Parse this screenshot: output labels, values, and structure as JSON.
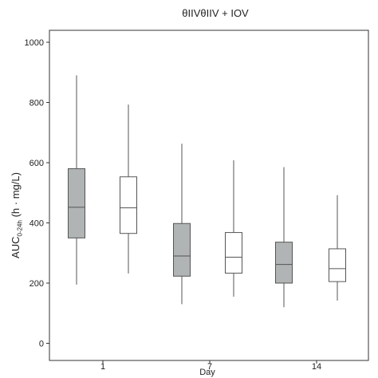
{
  "chart_data": {
    "type": "box",
    "title": "θIIVθIIV + IOV",
    "xlabel": "Day",
    "ylabel_main": "AUC",
    "ylabel_sub": "0-24h",
    "ylabel_unit": "(h · mg/L)",
    "ylim": [
      -50,
      1050
    ],
    "yticks": [
      0,
      200,
      400,
      600,
      800,
      1000
    ],
    "xtick_labels": [
      "1",
      "7",
      "14"
    ],
    "grid": false,
    "legend": "none",
    "colors": {
      "filled": "#b0b4b4",
      "open": "#ffffff",
      "stroke": "#555555",
      "frame": "#333333"
    },
    "series": [
      {
        "name": "θIIV",
        "style": "filled"
      },
      {
        "name": "θIIV + IOV",
        "style": "open"
      }
    ],
    "boxes": [
      {
        "day": "1",
        "series": "θIIV",
        "whisker_low": 195,
        "q1": 350,
        "median": 452,
        "q3": 580,
        "whisker_high": 890
      },
      {
        "day": "1",
        "series": "θIIV + IOV",
        "whisker_low": 232,
        "q1": 365,
        "median": 450,
        "q3": 553,
        "whisker_high": 793
      },
      {
        "day": "7",
        "series": "θIIV",
        "whisker_low": 130,
        "q1": 223,
        "median": 290,
        "q3": 398,
        "whisker_high": 663
      },
      {
        "day": "7",
        "series": "θIIV + IOV",
        "whisker_low": 155,
        "q1": 233,
        "median": 286,
        "q3": 368,
        "whisker_high": 608
      },
      {
        "day": "14",
        "series": "θIIV",
        "whisker_low": 120,
        "q1": 200,
        "median": 262,
        "q3": 336,
        "whisker_high": 585
      },
      {
        "day": "14",
        "series": "θIIV + IOV",
        "whisker_low": 142,
        "q1": 205,
        "median": 248,
        "q3": 314,
        "whisker_high": 492
      }
    ]
  }
}
